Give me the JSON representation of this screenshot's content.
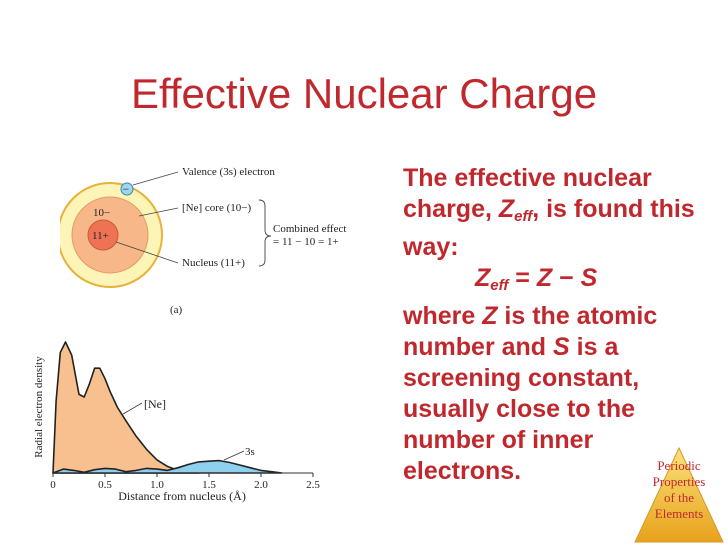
{
  "title": "Effective Nuclear Charge",
  "text": {
    "p1_start": "The effective nuclear charge, ",
    "zeff_z": "Z",
    "zeff_sub": "eff",
    "p1_end": ", is found this way:",
    "eq_lhs_z": "Z",
    "eq_lhs_sub": "eff",
    "eq_mid": " = ",
    "eq_z": "Z",
    "eq_minus": " − ",
    "eq_s": "S",
    "p2_a": "where ",
    "p2_z": "Z",
    "p2_b": " is the atomic number and ",
    "p2_s": "S",
    "p2_c": " is a screening constant, usually close to the number of inner electrons."
  },
  "atom_diagram": {
    "valence_label": "Valence (3s) electron",
    "core_label": "[Ne] core (10−)",
    "nucleus_label": "Nucleus (11+)",
    "combined_label_1": "Combined effect",
    "combined_label_2": "= 11 − 10 = 1+",
    "core_charge": "10−",
    "nucleus_charge": "11+",
    "electron_sign": "−",
    "panel_label": "(a)",
    "colors": {
      "outer": "#fdf4b8",
      "outer_edge": "#e7b23a",
      "core": "#f7b788",
      "nucleus": "#ee7355",
      "electron": "#9fd6ef"
    }
  },
  "chart_data": {
    "type": "area",
    "xlabel": "Distance from nucleus (Å)",
    "ylabel": "Radial electron density",
    "xlim": [
      0,
      2.5
    ],
    "x_ticks": [
      "0",
      "0.5",
      "1.0",
      "1.5",
      "2.0",
      "2.5"
    ],
    "series": [
      {
        "name": "[Ne]",
        "color": "#f9c08f",
        "x": [
          0,
          0.03,
          0.07,
          0.12,
          0.18,
          0.25,
          0.3,
          0.35,
          0.4,
          0.45,
          0.5,
          0.55,
          0.62,
          0.7,
          0.8,
          0.9,
          1.0,
          1.1,
          1.2,
          1.3,
          1.4
        ],
        "y": [
          0,
          0.55,
          0.92,
          1.0,
          0.9,
          0.6,
          0.58,
          0.68,
          0.8,
          0.8,
          0.72,
          0.62,
          0.5,
          0.4,
          0.28,
          0.18,
          0.1,
          0.05,
          0.02,
          0.01,
          0
        ]
      },
      {
        "name": "3s",
        "color": "#8fd0ee",
        "x": [
          0,
          0.1,
          0.2,
          0.3,
          0.4,
          0.5,
          0.6,
          0.7,
          0.8,
          0.9,
          1.0,
          1.1,
          1.2,
          1.3,
          1.4,
          1.5,
          1.6,
          1.7,
          1.8,
          1.9,
          2.0,
          2.1,
          2.2
        ],
        "y": [
          0,
          0.03,
          0.02,
          0.005,
          0.025,
          0.035,
          0.03,
          0.01,
          0.02,
          0.035,
          0.03,
          0.02,
          0.04,
          0.065,
          0.085,
          0.09,
          0.095,
          0.08,
          0.06,
          0.04,
          0.02,
          0.01,
          0
        ]
      }
    ]
  },
  "badge": {
    "line1": "Periodic",
    "line2": "Properties",
    "line3": "of the",
    "line4": "Elements"
  }
}
